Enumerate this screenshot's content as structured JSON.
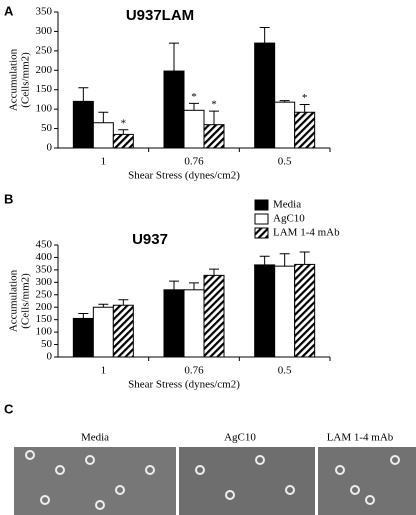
{
  "chart_data": [
    {
      "type": "bar",
      "panel_label": "A",
      "title": "U937LAM",
      "ylabel": [
        "Accumulation",
        "(Cells/mm2)"
      ],
      "xlabel": "Shear Stress (dynes/cm2)",
      "categories": [
        "1",
        "0.76",
        "0.5"
      ],
      "ylim": [
        0,
        350
      ],
      "yticks": [
        0,
        50,
        100,
        150,
        200,
        250,
        300,
        350
      ],
      "series": [
        {
          "color": "#000000",
          "values": [
            120,
            198,
            270
          ],
          "errors": [
            35,
            72,
            40
          ]
        },
        {
          "color": "#ffffff",
          "values": [
            65,
            97,
            118
          ],
          "errors": [
            27,
            18,
            4
          ],
          "significance": [
            null,
            "*",
            null
          ]
        },
        {
          "color": "#000000",
          "pattern": "hatch",
          "values": [
            35,
            60,
            92
          ],
          "errors": [
            12,
            35,
            20
          ],
          "significance": [
            "*",
            "*",
            "*"
          ]
        }
      ]
    },
    {
      "type": "bar",
      "panel_label": "B",
      "title": "U937",
      "ylabel": [
        "Accumulation",
        "(Cells/mm2)"
      ],
      "xlabel": "Shear Stress (dynes/cm2)",
      "categories": [
        "1",
        "0.76",
        "0.5"
      ],
      "ylim": [
        0,
        450
      ],
      "yticks": [
        0,
        50,
        100,
        150,
        200,
        250,
        300,
        350,
        400,
        450
      ],
      "legend": "top-right",
      "series": [
        {
          "name": "Media",
          "color": "#000000",
          "values": [
            155,
            270,
            370
          ],
          "errors": [
            20,
            35,
            35
          ]
        },
        {
          "name": "AgC10",
          "color": "#ffffff",
          "values": [
            200,
            270,
            365
          ],
          "errors": [
            12,
            28,
            50
          ]
        },
        {
          "name": "LAM 1-4 mAb",
          "color": "#000000",
          "pattern": "hatch",
          "values": [
            208,
            328,
            372
          ],
          "errors": [
            22,
            25,
            50
          ]
        }
      ]
    }
  ],
  "micrographs": {
    "panel_label": "C",
    "labels": [
      "Media",
      "AgC10",
      "LAM 1-4 mAb"
    ]
  }
}
